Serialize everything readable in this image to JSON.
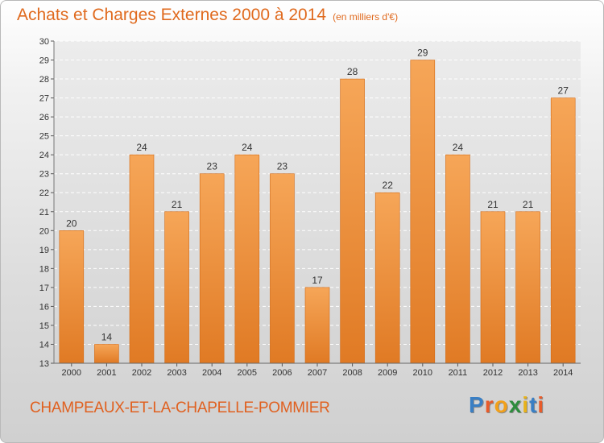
{
  "header": {
    "title": "Achats et Charges Externes 2000 à 2014",
    "unit": "(en milliers d'€)"
  },
  "footer": {
    "commune": "CHAMPEAUX-ET-LA-CHAPELLE-POMMIER"
  },
  "logo": {
    "text": "Proxiti",
    "letters": [
      {
        "ch": "P",
        "color": "#3a7fc4"
      },
      {
        "ch": "r",
        "color": "#e85b2a"
      },
      {
        "ch": "o",
        "color": "#f2a01a"
      },
      {
        "ch": "x",
        "color": "#2c8c3c"
      },
      {
        "ch": "i",
        "color": "#e8b21a"
      },
      {
        "ch": "t",
        "color": "#3a7fc4"
      },
      {
        "ch": "i",
        "color": "#e85b2a"
      }
    ]
  },
  "colors": {
    "accent": "#e06a1e",
    "bar_light": "#f6a658",
    "bar_dark": "#e07a24"
  },
  "chart_data": {
    "type": "bar",
    "title": "Achats et Charges Externes 2000 à 2014",
    "subtitle": "(en milliers d'€)",
    "categories": [
      "2000",
      "2001",
      "2002",
      "2003",
      "2004",
      "2005",
      "2006",
      "2007",
      "2008",
      "2009",
      "2010",
      "2011",
      "2012",
      "2013",
      "2014"
    ],
    "values": [
      20,
      14,
      24,
      21,
      23,
      24,
      23,
      17,
      28,
      22,
      29,
      24,
      21,
      21,
      27
    ],
    "ylim": [
      13,
      30
    ],
    "yticks": [
      13,
      14,
      15,
      16,
      17,
      18,
      19,
      20,
      21,
      22,
      23,
      24,
      25,
      26,
      27,
      28,
      29,
      30
    ],
    "grid": true,
    "data_labels": true
  }
}
